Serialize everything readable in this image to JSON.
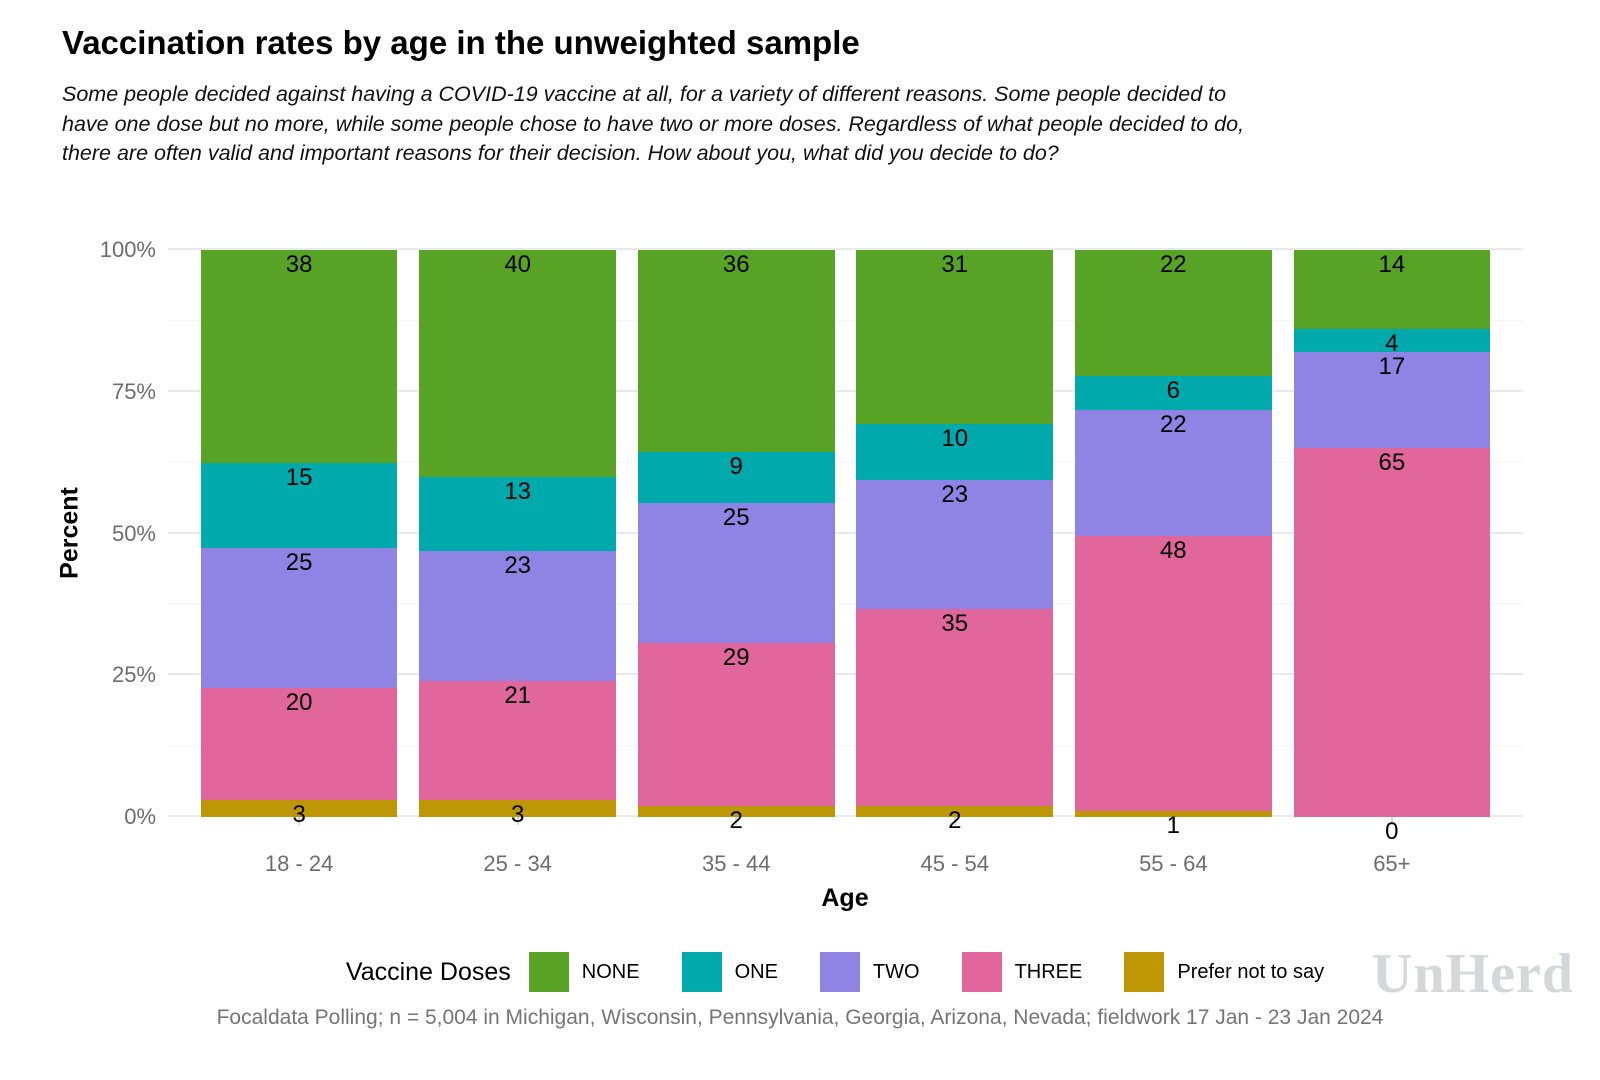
{
  "title": "Vaccination rates by age in the unweighted sample",
  "subtitle_lines": [
    "Some people decided against having a COVID-19 vaccine at all, for a variety of different reasons. Some people decided to",
    "have one dose but no more, while some people chose to have two or more doses. Regardless of what people decided to do,",
    "there are often valid and important reasons for their decision. How about you, what did you decide to do?"
  ],
  "chart_data": {
    "type": "bar",
    "stacked": true,
    "normalized_to_100_percent": true,
    "xlabel": "Age",
    "ylabel": "Percent",
    "categories": [
      "18 - 24",
      "25 - 34",
      "35 - 44",
      "45 - 54",
      "55 - 64",
      "65+"
    ],
    "series": [
      {
        "name": "NONE",
        "color": "#58a226",
        "values": [
          38,
          40,
          36,
          31,
          22,
          14
        ]
      },
      {
        "name": "ONE",
        "color": "#00a9ab",
        "values": [
          15,
          13,
          9,
          10,
          6,
          4
        ]
      },
      {
        "name": "TWO",
        "color": "#8f84e4",
        "values": [
          25,
          23,
          25,
          23,
          22,
          17
        ]
      },
      {
        "name": "THREE",
        "color": "#e0669b",
        "values": [
          20,
          21,
          29,
          35,
          48,
          65
        ]
      },
      {
        "name": "Prefer not to say",
        "color": "#bd9705",
        "values": [
          3,
          3,
          2,
          2,
          1,
          0
        ]
      }
    ],
    "stack_order_bottom_to_top": [
      "Prefer not to say",
      "THREE",
      "TWO",
      "ONE",
      "NONE"
    ],
    "ylim": [
      0,
      100
    ],
    "y_ticks": [
      "100%",
      "75%",
      "50%",
      "25%",
      "0%"
    ],
    "grid": "horizontal-major-and-minor",
    "legend_title": "Vaccine Doses",
    "legend_position": "bottom"
  },
  "footer": "Focaldata Polling; n = 5,004 in Michigan, Wisconsin, Pennsylvania, Georgia, Arizona, Nevada; fieldwork 17 Jan - 23 Jan 2024",
  "watermark": "UnHerd"
}
